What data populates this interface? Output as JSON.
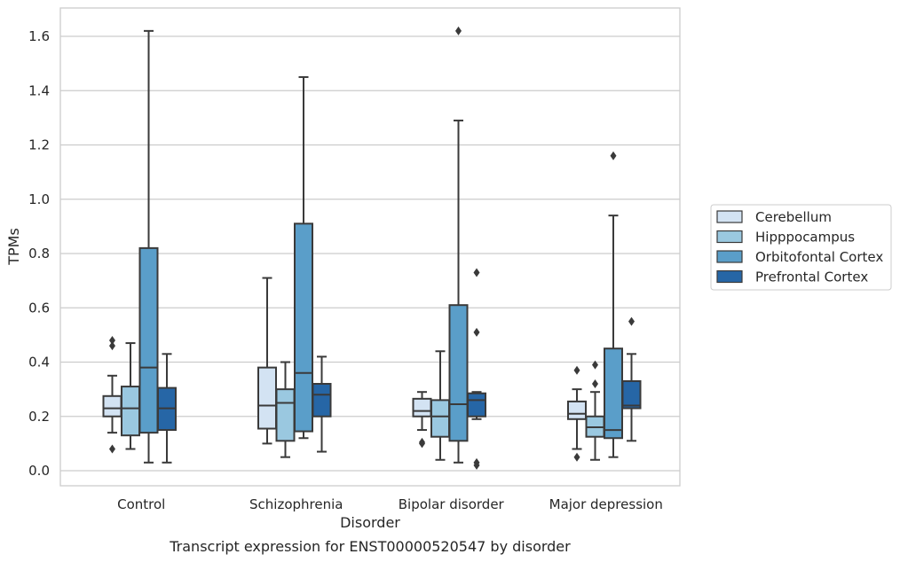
{
  "chart_data": {
    "type": "box",
    "caption": "Transcript expression for ENST00000520547 by disorder",
    "xlabel": "Disorder",
    "ylabel": "TPMs",
    "ylim": [
      -0.05,
      1.7
    ],
    "yticks": [
      "0.0",
      "0.2",
      "0.4",
      "0.6",
      "0.8",
      "1.0",
      "1.2",
      "1.4",
      "1.6"
    ],
    "grid": true,
    "legend_position": "right",
    "categories": [
      "Control",
      "Schizophrenia",
      "Bipolar disorder",
      "Major depression"
    ],
    "series": [
      {
        "name": "Cerebellum",
        "color": "#d3e3f3",
        "boxes": [
          {
            "whisker_low": 0.14,
            "q1": 0.2,
            "median": 0.23,
            "q3": 0.275,
            "whisker_high": 0.35,
            "outliers": [
              0.08,
              0.46,
              0.48
            ]
          },
          {
            "whisker_low": 0.1,
            "q1": 0.155,
            "median": 0.24,
            "q3": 0.38,
            "whisker_high": 0.71,
            "outliers": []
          },
          {
            "whisker_low": 0.15,
            "q1": 0.2,
            "median": 0.22,
            "q3": 0.265,
            "whisker_high": 0.29,
            "outliers": [
              0.1,
              0.105
            ]
          },
          {
            "whisker_low": 0.08,
            "q1": 0.19,
            "median": 0.21,
            "q3": 0.255,
            "whisker_high": 0.3,
            "outliers": [
              0.05,
              0.37
            ]
          }
        ]
      },
      {
        "name": "Hipppocampus",
        "color": "#9ac8e0",
        "boxes": [
          {
            "whisker_low": 0.08,
            "q1": 0.13,
            "median": 0.23,
            "q3": 0.31,
            "whisker_high": 0.47,
            "outliers": []
          },
          {
            "whisker_low": 0.05,
            "q1": 0.11,
            "median": 0.25,
            "q3": 0.3,
            "whisker_high": 0.4,
            "outliers": []
          },
          {
            "whisker_low": 0.04,
            "q1": 0.125,
            "median": 0.2,
            "q3": 0.26,
            "whisker_high": 0.44,
            "outliers": []
          },
          {
            "whisker_low": 0.04,
            "q1": 0.125,
            "median": 0.16,
            "q3": 0.2,
            "whisker_high": 0.29,
            "outliers": [
              0.32,
              0.39
            ]
          }
        ]
      },
      {
        "name": "Orbitofontal Cortex",
        "color": "#5a9ec9",
        "boxes": [
          {
            "whisker_low": 0.03,
            "q1": 0.14,
            "median": 0.38,
            "q3": 0.82,
            "whisker_high": 1.62,
            "outliers": []
          },
          {
            "whisker_low": 0.12,
            "q1": 0.145,
            "median": 0.36,
            "q3": 0.91,
            "whisker_high": 1.45,
            "outliers": []
          },
          {
            "whisker_low": 0.03,
            "q1": 0.11,
            "median": 0.245,
            "q3": 0.61,
            "whisker_high": 1.29,
            "outliers": [
              1.62
            ]
          },
          {
            "whisker_low": 0.05,
            "q1": 0.12,
            "median": 0.15,
            "q3": 0.45,
            "whisker_high": 0.94,
            "outliers": [
              1.16
            ]
          }
        ]
      },
      {
        "name": "Prefrontal Cortex",
        "color": "#2666a6",
        "boxes": [
          {
            "whisker_low": 0.03,
            "q1": 0.15,
            "median": 0.23,
            "q3": 0.305,
            "whisker_high": 0.43,
            "outliers": []
          },
          {
            "whisker_low": 0.07,
            "q1": 0.2,
            "median": 0.28,
            "q3": 0.32,
            "whisker_high": 0.42,
            "outliers": []
          },
          {
            "whisker_low": 0.19,
            "q1": 0.2,
            "median": 0.26,
            "q3": 0.285,
            "whisker_high": 0.29,
            "outliers": [
              0.02,
              0.03,
              0.51,
              0.73
            ]
          },
          {
            "whisker_low": 0.11,
            "q1": 0.23,
            "median": 0.24,
            "q3": 0.33,
            "whisker_high": 0.43,
            "outliers": [
              0.55
            ]
          }
        ]
      }
    ]
  }
}
